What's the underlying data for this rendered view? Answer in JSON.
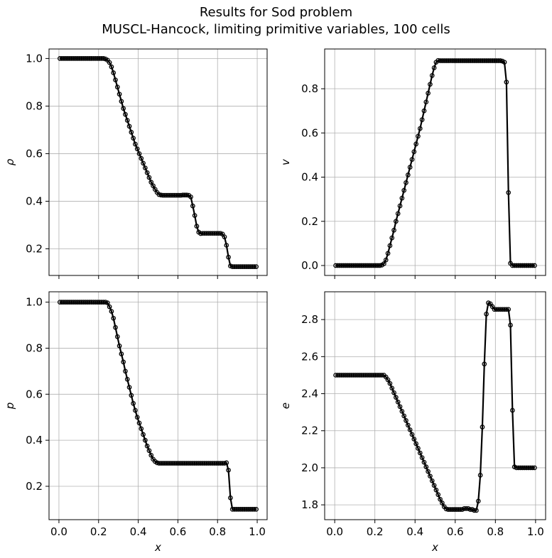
{
  "figure": {
    "title_line1": "Results for Sod problem",
    "title_line2": "MUSCL-Hancock, limiting primitive variables, 100 cells"
  },
  "chart_data": [
    {
      "type": "line",
      "ylabel": "ρ",
      "xlabel": "",
      "xlim": [
        -0.05,
        1.05
      ],
      "ylim": [
        0.088,
        1.04
      ],
      "xticks": [
        0.0,
        0.2,
        0.4,
        0.6,
        0.8,
        1.0
      ],
      "xtick_labels_visible": false,
      "yticks": [
        0.2,
        0.4,
        0.6,
        0.8,
        1.0
      ],
      "ytick_labels": [
        "0.2",
        "0.4",
        "0.6",
        "0.8",
        "1.0"
      ],
      "grid": true,
      "marker": "open-circle",
      "color": "#000000",
      "x": [
        0.005,
        0.015,
        0.025,
        0.035,
        0.045,
        0.055,
        0.065,
        0.075,
        0.085,
        0.095,
        0.105,
        0.115,
        0.125,
        0.135,
        0.145,
        0.155,
        0.165,
        0.175,
        0.185,
        0.195,
        0.205,
        0.215,
        0.225,
        0.235,
        0.245,
        0.255,
        0.265,
        0.275,
        0.285,
        0.295,
        0.305,
        0.315,
        0.325,
        0.335,
        0.345,
        0.355,
        0.365,
        0.375,
        0.385,
        0.395,
        0.405,
        0.415,
        0.425,
        0.435,
        0.445,
        0.455,
        0.465,
        0.475,
        0.485,
        0.495,
        0.505,
        0.515,
        0.525,
        0.535,
        0.545,
        0.555,
        0.565,
        0.575,
        0.585,
        0.595,
        0.605,
        0.615,
        0.625,
        0.635,
        0.645,
        0.655,
        0.665,
        0.675,
        0.685,
        0.695,
        0.705,
        0.715,
        0.725,
        0.735,
        0.745,
        0.755,
        0.765,
        0.775,
        0.785,
        0.795,
        0.805,
        0.815,
        0.825,
        0.835,
        0.845,
        0.855,
        0.865,
        0.875,
        0.885,
        0.895,
        0.905,
        0.915,
        0.925,
        0.935,
        0.945,
        0.955,
        0.965,
        0.975,
        0.985,
        0.995
      ],
      "y": [
        1.0,
        1.0,
        1.0,
        1.0,
        1.0,
        1.0,
        1.0,
        1.0,
        1.0,
        1.0,
        1.0,
        1.0,
        1.0,
        1.0,
        1.0,
        1.0,
        1.0,
        1.0,
        1.0,
        1.0,
        1.0,
        1.0,
        1.0,
        0.998,
        0.993,
        0.983,
        0.965,
        0.94,
        0.91,
        0.88,
        0.85,
        0.82,
        0.79,
        0.765,
        0.74,
        0.715,
        0.69,
        0.665,
        0.64,
        0.62,
        0.6,
        0.58,
        0.56,
        0.54,
        0.52,
        0.5,
        0.48,
        0.465,
        0.45,
        0.437,
        0.428,
        0.426,
        0.425,
        0.425,
        0.425,
        0.425,
        0.425,
        0.425,
        0.425,
        0.425,
        0.425,
        0.425,
        0.426,
        0.426,
        0.426,
        0.425,
        0.418,
        0.38,
        0.34,
        0.295,
        0.27,
        0.264,
        0.265,
        0.265,
        0.265,
        0.265,
        0.265,
        0.265,
        0.265,
        0.265,
        0.265,
        0.265,
        0.262,
        0.25,
        0.215,
        0.165,
        0.128,
        0.125,
        0.125,
        0.125,
        0.125,
        0.125,
        0.125,
        0.125,
        0.125,
        0.125,
        0.125,
        0.125,
        0.125,
        0.125
      ]
    },
    {
      "type": "line",
      "ylabel": "v",
      "xlabel": "",
      "xlim": [
        -0.05,
        1.05
      ],
      "ylim": [
        -0.045,
        0.98
      ],
      "xticks": [
        0.0,
        0.2,
        0.4,
        0.6,
        0.8,
        1.0
      ],
      "xtick_labels_visible": false,
      "yticks": [
        0.0,
        0.2,
        0.4,
        0.6,
        0.8
      ],
      "ytick_labels": [
        "0.0",
        "0.2",
        "0.4",
        "0.6",
        "0.8"
      ],
      "grid": true,
      "marker": "open-circle",
      "color": "#000000",
      "x": [
        0.005,
        0.015,
        0.025,
        0.035,
        0.045,
        0.055,
        0.065,
        0.075,
        0.085,
        0.095,
        0.105,
        0.115,
        0.125,
        0.135,
        0.145,
        0.155,
        0.165,
        0.175,
        0.185,
        0.195,
        0.205,
        0.215,
        0.225,
        0.235,
        0.245,
        0.255,
        0.265,
        0.275,
        0.285,
        0.295,
        0.305,
        0.315,
        0.325,
        0.335,
        0.345,
        0.355,
        0.365,
        0.375,
        0.385,
        0.395,
        0.405,
        0.415,
        0.425,
        0.435,
        0.445,
        0.455,
        0.465,
        0.475,
        0.485,
        0.495,
        0.505,
        0.515,
        0.525,
        0.535,
        0.545,
        0.555,
        0.565,
        0.575,
        0.585,
        0.595,
        0.605,
        0.615,
        0.625,
        0.635,
        0.645,
        0.655,
        0.665,
        0.675,
        0.685,
        0.695,
        0.705,
        0.715,
        0.725,
        0.735,
        0.745,
        0.755,
        0.765,
        0.775,
        0.785,
        0.795,
        0.805,
        0.815,
        0.825,
        0.835,
        0.845,
        0.855,
        0.865,
        0.875,
        0.885,
        0.895,
        0.905,
        0.915,
        0.925,
        0.935,
        0.945,
        0.955,
        0.965,
        0.975,
        0.985,
        0.995
      ],
      "y": [
        0.0,
        0.0,
        0.0,
        0.0,
        0.0,
        0.0,
        0.0,
        0.0,
        0.0,
        0.0,
        0.0,
        0.0,
        0.0,
        0.0,
        0.0,
        0.0,
        0.0,
        0.0,
        0.0,
        0.0,
        0.0,
        0.0,
        0.0,
        0.002,
        0.008,
        0.025,
        0.055,
        0.09,
        0.125,
        0.16,
        0.2,
        0.235,
        0.27,
        0.305,
        0.34,
        0.375,
        0.41,
        0.445,
        0.48,
        0.515,
        0.55,
        0.585,
        0.62,
        0.66,
        0.7,
        0.74,
        0.78,
        0.82,
        0.86,
        0.895,
        0.92,
        0.928,
        0.927,
        0.927,
        0.927,
        0.927,
        0.927,
        0.927,
        0.927,
        0.927,
        0.927,
        0.927,
        0.927,
        0.927,
        0.927,
        0.927,
        0.927,
        0.927,
        0.927,
        0.927,
        0.927,
        0.927,
        0.927,
        0.927,
        0.927,
        0.927,
        0.927,
        0.927,
        0.927,
        0.927,
        0.927,
        0.927,
        0.927,
        0.925,
        0.92,
        0.83,
        0.33,
        0.01,
        0.0,
        0.0,
        0.0,
        0.0,
        0.0,
        0.0,
        0.0,
        0.0,
        0.0,
        0.0,
        0.0,
        0.0
      ]
    },
    {
      "type": "line",
      "ylabel": "p",
      "xlabel": "x",
      "xlim": [
        -0.05,
        1.05
      ],
      "ylim": [
        0.055,
        1.045
      ],
      "xticks": [
        0.0,
        0.2,
        0.4,
        0.6,
        0.8,
        1.0
      ],
      "xtick_labels": [
        "0.0",
        "0.2",
        "0.4",
        "0.6",
        "0.8",
        "1.0"
      ],
      "yticks": [
        0.2,
        0.4,
        0.6,
        0.8,
        1.0
      ],
      "ytick_labels": [
        "0.2",
        "0.4",
        "0.6",
        "0.8",
        "1.0"
      ],
      "grid": true,
      "marker": "open-circle",
      "color": "#000000",
      "x": [
        0.005,
        0.015,
        0.025,
        0.035,
        0.045,
        0.055,
        0.065,
        0.075,
        0.085,
        0.095,
        0.105,
        0.115,
        0.125,
        0.135,
        0.145,
        0.155,
        0.165,
        0.175,
        0.185,
        0.195,
        0.205,
        0.215,
        0.225,
        0.235,
        0.245,
        0.255,
        0.265,
        0.275,
        0.285,
        0.295,
        0.305,
        0.315,
        0.325,
        0.335,
        0.345,
        0.355,
        0.365,
        0.375,
        0.385,
        0.395,
        0.405,
        0.415,
        0.425,
        0.435,
        0.445,
        0.455,
        0.465,
        0.475,
        0.485,
        0.495,
        0.505,
        0.515,
        0.525,
        0.535,
        0.545,
        0.555,
        0.565,
        0.575,
        0.585,
        0.595,
        0.605,
        0.615,
        0.625,
        0.635,
        0.645,
        0.655,
        0.665,
        0.675,
        0.685,
        0.695,
        0.705,
        0.715,
        0.725,
        0.735,
        0.745,
        0.755,
        0.765,
        0.775,
        0.785,
        0.795,
        0.805,
        0.815,
        0.825,
        0.835,
        0.845,
        0.855,
        0.865,
        0.875,
        0.885,
        0.895,
        0.905,
        0.915,
        0.925,
        0.935,
        0.945,
        0.955,
        0.965,
        0.975,
        0.985,
        0.995
      ],
      "y": [
        1.0,
        1.0,
        1.0,
        1.0,
        1.0,
        1.0,
        1.0,
        1.0,
        1.0,
        1.0,
        1.0,
        1.0,
        1.0,
        1.0,
        1.0,
        1.0,
        1.0,
        1.0,
        1.0,
        1.0,
        1.0,
        1.0,
        1.0,
        1.0,
        0.997,
        0.98,
        0.96,
        0.93,
        0.89,
        0.85,
        0.81,
        0.775,
        0.74,
        0.7,
        0.665,
        0.63,
        0.595,
        0.56,
        0.53,
        0.5,
        0.475,
        0.45,
        0.425,
        0.4,
        0.375,
        0.355,
        0.335,
        0.318,
        0.308,
        0.302,
        0.3,
        0.3,
        0.3,
        0.3,
        0.3,
        0.3,
        0.3,
        0.3,
        0.3,
        0.3,
        0.3,
        0.3,
        0.3,
        0.3,
        0.3,
        0.3,
        0.3,
        0.3,
        0.3,
        0.3,
        0.3,
        0.3,
        0.3,
        0.3,
        0.3,
        0.3,
        0.3,
        0.3,
        0.3,
        0.3,
        0.3,
        0.3,
        0.3,
        0.3,
        0.302,
        0.27,
        0.15,
        0.1,
        0.1,
        0.1,
        0.1,
        0.1,
        0.1,
        0.1,
        0.1,
        0.1,
        0.1,
        0.1,
        0.1,
        0.1
      ]
    },
    {
      "type": "line",
      "ylabel": "e",
      "xlabel": "x",
      "xlim": [
        -0.05,
        1.05
      ],
      "ylim": [
        1.72,
        2.95
      ],
      "xticks": [
        0.0,
        0.2,
        0.4,
        0.6,
        0.8,
        1.0
      ],
      "xtick_labels": [
        "0.0",
        "0.2",
        "0.4",
        "0.6",
        "0.8",
        "1.0"
      ],
      "yticks": [
        1.8,
        2.0,
        2.2,
        2.4,
        2.6,
        2.8
      ],
      "ytick_labels": [
        "1.8",
        "2.0",
        "2.2",
        "2.4",
        "2.6",
        "2.8"
      ],
      "grid": true,
      "marker": "open-circle",
      "color": "#000000",
      "x": [
        0.005,
        0.015,
        0.025,
        0.035,
        0.045,
        0.055,
        0.065,
        0.075,
        0.085,
        0.095,
        0.105,
        0.115,
        0.125,
        0.135,
        0.145,
        0.155,
        0.165,
        0.175,
        0.185,
        0.195,
        0.205,
        0.215,
        0.225,
        0.235,
        0.245,
        0.255,
        0.265,
        0.275,
        0.285,
        0.295,
        0.305,
        0.315,
        0.325,
        0.335,
        0.345,
        0.355,
        0.365,
        0.375,
        0.385,
        0.395,
        0.405,
        0.415,
        0.425,
        0.435,
        0.445,
        0.455,
        0.465,
        0.475,
        0.485,
        0.495,
        0.505,
        0.515,
        0.525,
        0.535,
        0.545,
        0.555,
        0.565,
        0.575,
        0.585,
        0.595,
        0.605,
        0.615,
        0.625,
        0.635,
        0.645,
        0.655,
        0.665,
        0.675,
        0.685,
        0.695,
        0.705,
        0.715,
        0.725,
        0.735,
        0.745,
        0.755,
        0.765,
        0.775,
        0.785,
        0.795,
        0.805,
        0.815,
        0.825,
        0.835,
        0.845,
        0.855,
        0.865,
        0.875,
        0.885,
        0.895,
        0.905,
        0.915,
        0.925,
        0.935,
        0.945,
        0.955,
        0.965,
        0.975,
        0.985,
        0.995
      ],
      "y": [
        2.5,
        2.5,
        2.5,
        2.5,
        2.5,
        2.5,
        2.5,
        2.5,
        2.5,
        2.5,
        2.5,
        2.5,
        2.5,
        2.5,
        2.5,
        2.5,
        2.5,
        2.5,
        2.5,
        2.5,
        2.5,
        2.5,
        2.5,
        2.5,
        2.5,
        2.49,
        2.475,
        2.455,
        2.43,
        2.405,
        2.38,
        2.355,
        2.33,
        2.305,
        2.28,
        2.255,
        2.23,
        2.205,
        2.18,
        2.155,
        2.13,
        2.105,
        2.08,
        2.055,
        2.03,
        2.005,
        1.98,
        1.955,
        1.93,
        1.905,
        1.88,
        1.855,
        1.83,
        1.81,
        1.79,
        1.778,
        1.775,
        1.775,
        1.775,
        1.775,
        1.775,
        1.775,
        1.775,
        1.775,
        1.78,
        1.78,
        1.78,
        1.775,
        1.775,
        1.77,
        1.77,
        1.82,
        1.96,
        2.22,
        2.56,
        2.83,
        2.89,
        2.885,
        2.87,
        2.855,
        2.855,
        2.855,
        2.855,
        2.855,
        2.855,
        2.855,
        2.855,
        2.77,
        2.31,
        2.005,
        2.0,
        2.0,
        2.0,
        2.0,
        2.0,
        2.0,
        2.0,
        2.0,
        2.0,
        2.0
      ]
    }
  ]
}
